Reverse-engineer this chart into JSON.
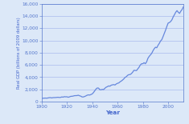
{
  "title": "",
  "xlabel": "Year",
  "ylabel": "Real GDP (billions of 2009 dollars)",
  "line_color": "#6688dd",
  "bg_color": "#dce8f8",
  "plot_bg": "#dce8f8",
  "grid_color": "#aabbee",
  "xlabel_color": "#4466cc",
  "ylabel_color": "#4466cc",
  "tick_color": "#5577cc",
  "ylim": [
    0,
    16000
  ],
  "xlim": [
    1900,
    2012
  ],
  "yticks": [
    0,
    2000,
    4000,
    6000,
    8000,
    10000,
    12000,
    14000,
    16000
  ],
  "xticks": [
    1900,
    1920,
    1940,
    1960,
    1980,
    2000
  ],
  "years": [
    1900,
    1901,
    1902,
    1903,
    1904,
    1905,
    1906,
    1907,
    1908,
    1909,
    1910,
    1911,
    1912,
    1913,
    1914,
    1915,
    1916,
    1917,
    1918,
    1919,
    1920,
    1921,
    1922,
    1923,
    1924,
    1925,
    1926,
    1927,
    1928,
    1929,
    1930,
    1931,
    1932,
    1933,
    1934,
    1935,
    1936,
    1937,
    1938,
    1939,
    1940,
    1941,
    1942,
    1943,
    1944,
    1945,
    1946,
    1947,
    1948,
    1949,
    1950,
    1951,
    1952,
    1953,
    1954,
    1955,
    1956,
    1957,
    1958,
    1959,
    1960,
    1961,
    1962,
    1963,
    1964,
    1965,
    1966,
    1967,
    1968,
    1969,
    1970,
    1971,
    1972,
    1973,
    1974,
    1975,
    1976,
    1977,
    1978,
    1979,
    1980,
    1981,
    1982,
    1983,
    1984,
    1985,
    1986,
    1987,
    1988,
    1989,
    1990,
    1991,
    1992,
    1993,
    1994,
    1995,
    1996,
    1997,
    1998,
    1999,
    2000,
    2001,
    2002,
    2003,
    2004,
    2005,
    2006,
    2007,
    2008,
    2009,
    2010,
    2011,
    2012
  ],
  "gdp": [
    530,
    560,
    575,
    590,
    572,
    605,
    650,
    665,
    612,
    660,
    670,
    675,
    700,
    720,
    685,
    700,
    775,
    740,
    820,
    790,
    805,
    724,
    780,
    870,
    880,
    920,
    980,
    990,
    1000,
    1057,
    967,
    900,
    778,
    773,
    849,
    940,
    1060,
    1110,
    1080,
    1170,
    1267,
    1490,
    1778,
    2063,
    2239,
    2217,
    1962,
    1944,
    2008,
    1974,
    2184,
    2360,
    2456,
    2572,
    2528,
    2692,
    2750,
    2793,
    2722,
    2897,
    3000,
    3065,
    3244,
    3375,
    3535,
    3730,
    3975,
    4090,
    4310,
    4420,
    4436,
    4594,
    4828,
    5132,
    5095,
    5079,
    5356,
    5620,
    5990,
    6193,
    6206,
    6368,
    6198,
    6502,
    7077,
    7395,
    7637,
    7893,
    8309,
    8650,
    8893,
    8809,
    9205,
    9521,
    9905,
    10138,
    10637,
    11175,
    11700,
    12300,
    12840,
    12927,
    13095,
    13377,
    13855,
    14218,
    14613,
    14874,
    14606,
    14418,
    14779,
    15052,
    15470
  ],
  "linewidth": 0.9
}
